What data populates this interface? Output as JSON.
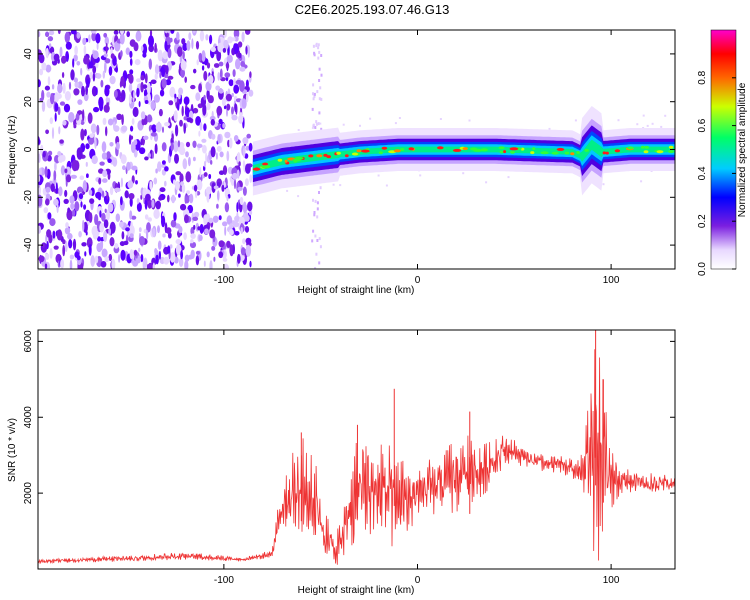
{
  "title": "C2E6.2025.193.07.46.G13",
  "chart_data": [
    {
      "type": "heatmap",
      "xlabel": "Height of straight line (km)",
      "ylabel": "Frequency (Hz)",
      "xlim": [
        -196,
        133
      ],
      "ylim": [
        -50,
        50
      ],
      "xticks": [
        -100,
        0,
        100
      ],
      "yticks": [
        -40,
        -20,
        0,
        20,
        40
      ],
      "colorbar": {
        "label": "Normalized spectral amplitude",
        "range": [
          0,
          1
        ],
        "ticks": [
          0.0,
          0.2,
          0.4,
          0.6,
          0.8
        ],
        "colors": [
          "#ffffff",
          "#e8d8ff",
          "#7b1fe0",
          "#0000ff",
          "#00ccff",
          "#00ff66",
          "#ccff00",
          "#ff6600",
          "#ff0000",
          "#ff00cc"
        ]
      },
      "regions": [
        {
          "name": "broadband noise",
          "x_range": [
            -196,
            -86
          ],
          "freq_range": [
            -50,
            50
          ]
        },
        {
          "name": "signal trace",
          "points": [
            [
              -85,
              -8
            ],
            [
              -70,
              -5
            ],
            [
              -50,
              -3
            ],
            [
              -30,
              -1
            ],
            [
              -10,
              0
            ],
            [
              0,
              0
            ],
            [
              40,
              0
            ],
            [
              80,
              -1
            ],
            [
              85,
              -3
            ],
            [
              90,
              2
            ],
            [
              95,
              -1
            ],
            [
              110,
              0
            ],
            [
              133,
              0
            ]
          ]
        },
        {
          "name": "sparse column",
          "x_range": [
            -55,
            -50
          ],
          "freq_range": [
            -50,
            45
          ]
        }
      ]
    },
    {
      "type": "line",
      "xlabel": "Height of straight line (km)",
      "ylabel": "SNR (10 * v/v)",
      "xlim": [
        -196,
        133
      ],
      "ylim": [
        0,
        6300
      ],
      "xticks": [
        -100,
        0,
        100
      ],
      "yticks": [
        2000,
        4000,
        6000
      ],
      "color": "#ee3333",
      "envelope": [
        [
          -196,
          150,
          250
        ],
        [
          -150,
          200,
          350
        ],
        [
          -120,
          250,
          450
        ],
        [
          -90,
          200,
          300
        ],
        [
          -75,
          300,
          500
        ],
        [
          -72,
          800,
          1800
        ],
        [
          -65,
          1200,
          3000
        ],
        [
          -60,
          1000,
          3500
        ],
        [
          -52,
          600,
          3000
        ],
        [
          -48,
          200,
          1500
        ],
        [
          -42,
          100,
          900
        ],
        [
          -38,
          200,
          1700
        ],
        [
          -34,
          600,
          2800
        ],
        [
          -30,
          800,
          3800
        ],
        [
          -25,
          900,
          3500
        ],
        [
          -20,
          800,
          3300
        ],
        [
          -15,
          600,
          3300
        ],
        [
          -10,
          600,
          2800
        ],
        [
          -5,
          1000,
          2900
        ],
        [
          0,
          1300,
          2700
        ],
        [
          10,
          1400,
          3000
        ],
        [
          20,
          1500,
          3400
        ],
        [
          25,
          1700,
          3600
        ],
        [
          30,
          1800,
          3200
        ],
        [
          35,
          2000,
          3300
        ],
        [
          40,
          2300,
          3400
        ],
        [
          45,
          2800,
          3600
        ],
        [
          55,
          2700,
          3200
        ],
        [
          65,
          2550,
          3000
        ],
        [
          75,
          2500,
          3000
        ],
        [
          84,
          2300,
          2850
        ],
        [
          88,
          1000,
          4200
        ],
        [
          92,
          300,
          6200
        ],
        [
          96,
          100,
          5000
        ],
        [
          99,
          1500,
          3200
        ],
        [
          105,
          2000,
          2700
        ],
        [
          115,
          2050,
          2550
        ],
        [
          125,
          2000,
          2500
        ],
        [
          133,
          2050,
          2450
        ]
      ],
      "spikes": [
        [
          -60,
          3600
        ],
        [
          -31,
          3800
        ],
        [
          -12,
          4750
        ],
        [
          27,
          4150
        ],
        [
          92,
          6300
        ],
        [
          96,
          5000
        ]
      ]
    }
  ]
}
